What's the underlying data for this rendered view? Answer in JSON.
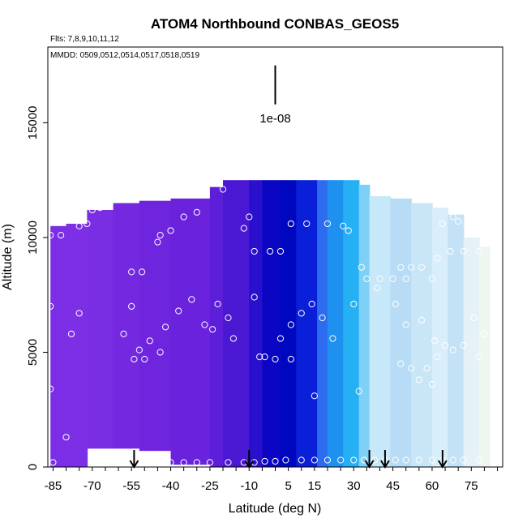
{
  "chart_data": {
    "type": "heatmap",
    "title": "ATOM4 Northbound CONBAS_GEOS5",
    "subtitle_flights": "Flts: 7,8,9,10,11,12",
    "subtitle_dates": "MMDD: 0509,0512,0514,0517,0518,0519",
    "xlabel": "Latitude (deg N)",
    "ylabel": "Altitude (m)",
    "xlim": [
      -87,
      87
    ],
    "ylim": [
      0,
      18300
    ],
    "x_ticks": [
      -85,
      -70,
      -55,
      -40,
      -25,
      -10,
      5,
      15,
      30,
      45,
      60,
      75
    ],
    "x_tick_labels": [
      "-85",
      "-70",
      "-55",
      "-40",
      "-25",
      "-10",
      "5",
      "15",
      "30",
      "45",
      "60",
      "75"
    ],
    "y_ticks": [
      0,
      5000,
      10000,
      15000
    ],
    "y_tick_labels": [
      "0",
      "5000",
      "10000",
      "15000"
    ],
    "scale_bar_label": "1e-08",
    "scale_bar_latitude": 0,
    "scale_bar_altitude_range": [
      15800,
      17500
    ],
    "arrow_latitudes": [
      -54,
      -10,
      36,
      42,
      64
    ],
    "colors": {
      "purple": "#7b2ee6",
      "dark_blue": "#0a0ccc",
      "blue": "#2660ee",
      "light_blue": "#1aa8f2",
      "pale_blue": "#bfe3f7",
      "pale_yellow": "#f3f6d6"
    },
    "curtain": {
      "latitude_edges": [
        -86,
        -80,
        -72,
        -62,
        -52,
        -40,
        -25,
        -20,
        -10,
        -5,
        2,
        8,
        16,
        20,
        26,
        32,
        36,
        44,
        52,
        60,
        66,
        72,
        78,
        82
      ],
      "top_altitudes": [
        10500,
        10600,
        11200,
        11500,
        11600,
        11700,
        12200,
        12500,
        12500,
        12500,
        12500,
        12500,
        12500,
        12500,
        12500,
        12300,
        11800,
        11700,
        11500,
        11300,
        11000,
        10000,
        9600
      ],
      "bottom_altitudes": [
        0,
        0,
        800,
        800,
        700,
        100,
        0,
        0,
        0,
        0,
        0,
        0,
        0,
        0,
        0,
        0,
        0,
        0,
        0,
        0,
        0,
        0,
        0
      ],
      "column_colors": [
        "#7b2ee6",
        "#7d2fe6",
        "#7a2ee3",
        "#7428e0",
        "#6f25de",
        "#6a22dd",
        "#5c1ed8",
        "#4a18d2",
        "#2a10cc",
        "#0b06c4",
        "#0008bf",
        "#0a1fd8",
        "#2e6cef",
        "#1e90f0",
        "#26b0f4",
        "#7fd0f6",
        "#c6e8f8",
        "#b8dcf5",
        "#c9e6f7",
        "#d8eefa",
        "#c3e2f6",
        "#e4f2f8",
        "#eef6f0"
      ]
    },
    "observation_points": [
      {
        "x": -86,
        "y": 10100
      },
      {
        "x": -82,
        "y": 10100
      },
      {
        "x": -86,
        "y": 7000
      },
      {
        "x": -78,
        "y": 5800
      },
      {
        "x": -75,
        "y": 6700
      },
      {
        "x": -80,
        "y": 1300
      },
      {
        "x": -86,
        "y": 3400
      },
      {
        "x": -75,
        "y": 10500
      },
      {
        "x": -72,
        "y": 10600
      },
      {
        "x": -70,
        "y": 11200
      },
      {
        "x": -67,
        "y": 11300
      },
      {
        "x": -64,
        "y": 11600
      },
      {
        "x": -55,
        "y": 8500
      },
      {
        "x": -51,
        "y": 8500
      },
      {
        "x": -55,
        "y": 7000
      },
      {
        "x": -58,
        "y": 5800
      },
      {
        "x": -52,
        "y": 5100
      },
      {
        "x": -50,
        "y": 4700
      },
      {
        "x": -48,
        "y": 5500
      },
      {
        "x": -44,
        "y": 5000
      },
      {
        "x": -42,
        "y": 6100
      },
      {
        "x": -54,
        "y": 4700
      },
      {
        "x": -45,
        "y": 9800
      },
      {
        "x": -44,
        "y": 10100
      },
      {
        "x": -40,
        "y": 10300
      },
      {
        "x": -35,
        "y": 10900
      },
      {
        "x": -30,
        "y": 11100
      },
      {
        "x": -37,
        "y": 6800
      },
      {
        "x": -32,
        "y": 7300
      },
      {
        "x": -27,
        "y": 6200
      },
      {
        "x": -24,
        "y": 6000
      },
      {
        "x": -22,
        "y": 7100
      },
      {
        "x": -18,
        "y": 6500
      },
      {
        "x": -16,
        "y": 5600
      },
      {
        "x": -20,
        "y": 12100
      },
      {
        "x": -12,
        "y": 10400
      },
      {
        "x": -10,
        "y": 10900
      },
      {
        "x": -8,
        "y": 7400
      },
      {
        "x": -6,
        "y": 4800
      },
      {
        "x": -4,
        "y": 4800
      },
      {
        "x": -8,
        "y": 9400
      },
      {
        "x": -2,
        "y": 9400
      },
      {
        "x": 2,
        "y": 9400
      },
      {
        "x": 0,
        "y": 4700
      },
      {
        "x": 2,
        "y": 5600
      },
      {
        "x": 6,
        "y": 10600
      },
      {
        "x": 12,
        "y": 10600
      },
      {
        "x": 20,
        "y": 10600
      },
      {
        "x": 26,
        "y": 10500
      },
      {
        "x": 28,
        "y": 10300
      },
      {
        "x": 10,
        "y": 6700
      },
      {
        "x": 14,
        "y": 7100
      },
      {
        "x": 18,
        "y": 6500
      },
      {
        "x": 22,
        "y": 5600
      },
      {
        "x": 6,
        "y": 6200
      },
      {
        "x": 6,
        "y": 4700
      },
      {
        "x": 15,
        "y": 3100
      },
      {
        "x": 33,
        "y": 8700
      },
      {
        "x": 35,
        "y": 8200
      },
      {
        "x": 39,
        "y": 7800
      },
      {
        "x": 40,
        "y": 8200
      },
      {
        "x": 45,
        "y": 8200
      },
      {
        "x": 48,
        "y": 8700
      },
      {
        "x": 52,
        "y": 8700
      },
      {
        "x": 50,
        "y": 8200
      },
      {
        "x": 56,
        "y": 8700
      },
      {
        "x": 60,
        "y": 8200
      },
      {
        "x": 62,
        "y": 9100
      },
      {
        "x": 67,
        "y": 9400
      },
      {
        "x": 72,
        "y": 9400
      },
      {
        "x": 78,
        "y": 9400
      },
      {
        "x": 64,
        "y": 10600
      },
      {
        "x": 68,
        "y": 10900
      },
      {
        "x": 70,
        "y": 10700
      },
      {
        "x": 30,
        "y": 7100
      },
      {
        "x": 46,
        "y": 7100
      },
      {
        "x": 50,
        "y": 6200
      },
      {
        "x": 56,
        "y": 6400
      },
      {
        "x": 61,
        "y": 5500
      },
      {
        "x": 65,
        "y": 5300
      },
      {
        "x": 68,
        "y": 5100
      },
      {
        "x": 72,
        "y": 5300
      },
      {
        "x": 78,
        "y": 4800
      },
      {
        "x": 62,
        "y": 4800
      },
      {
        "x": 58,
        "y": 4300
      },
      {
        "x": 52,
        "y": 4300
      },
      {
        "x": 48,
        "y": 4500
      },
      {
        "x": 55,
        "y": 3800
      },
      {
        "x": 60,
        "y": 3600
      },
      {
        "x": 32,
        "y": 3300
      },
      {
        "x": 76,
        "y": 6500
      },
      {
        "x": 80,
        "y": 5800
      },
      {
        "x": -85,
        "y": 200
      },
      {
        "x": -60,
        "y": 300
      },
      {
        "x": -57,
        "y": 200
      },
      {
        "x": -53,
        "y": 200
      },
      {
        "x": -50,
        "y": 200
      },
      {
        "x": -45,
        "y": 200
      },
      {
        "x": -40,
        "y": 200
      },
      {
        "x": -35,
        "y": 200
      },
      {
        "x": -30,
        "y": 200
      },
      {
        "x": -25,
        "y": 200
      },
      {
        "x": -18,
        "y": 200
      },
      {
        "x": -12,
        "y": 200
      },
      {
        "x": -8,
        "y": 200
      },
      {
        "x": -4,
        "y": 250
      },
      {
        "x": 0,
        "y": 250
      },
      {
        "x": 4,
        "y": 300
      },
      {
        "x": 10,
        "y": 300
      },
      {
        "x": 15,
        "y": 300
      },
      {
        "x": 20,
        "y": 300
      },
      {
        "x": 25,
        "y": 300
      },
      {
        "x": 30,
        "y": 300
      },
      {
        "x": 34,
        "y": 300
      },
      {
        "x": 38,
        "y": 300
      },
      {
        "x": 42,
        "y": 300
      },
      {
        "x": 46,
        "y": 300
      },
      {
        "x": 50,
        "y": 300
      },
      {
        "x": 55,
        "y": 300
      },
      {
        "x": 60,
        "y": 300
      },
      {
        "x": 64,
        "y": 300
      },
      {
        "x": 68,
        "y": 300
      },
      {
        "x": 72,
        "y": 300
      },
      {
        "x": 78,
        "y": 300
      }
    ]
  }
}
